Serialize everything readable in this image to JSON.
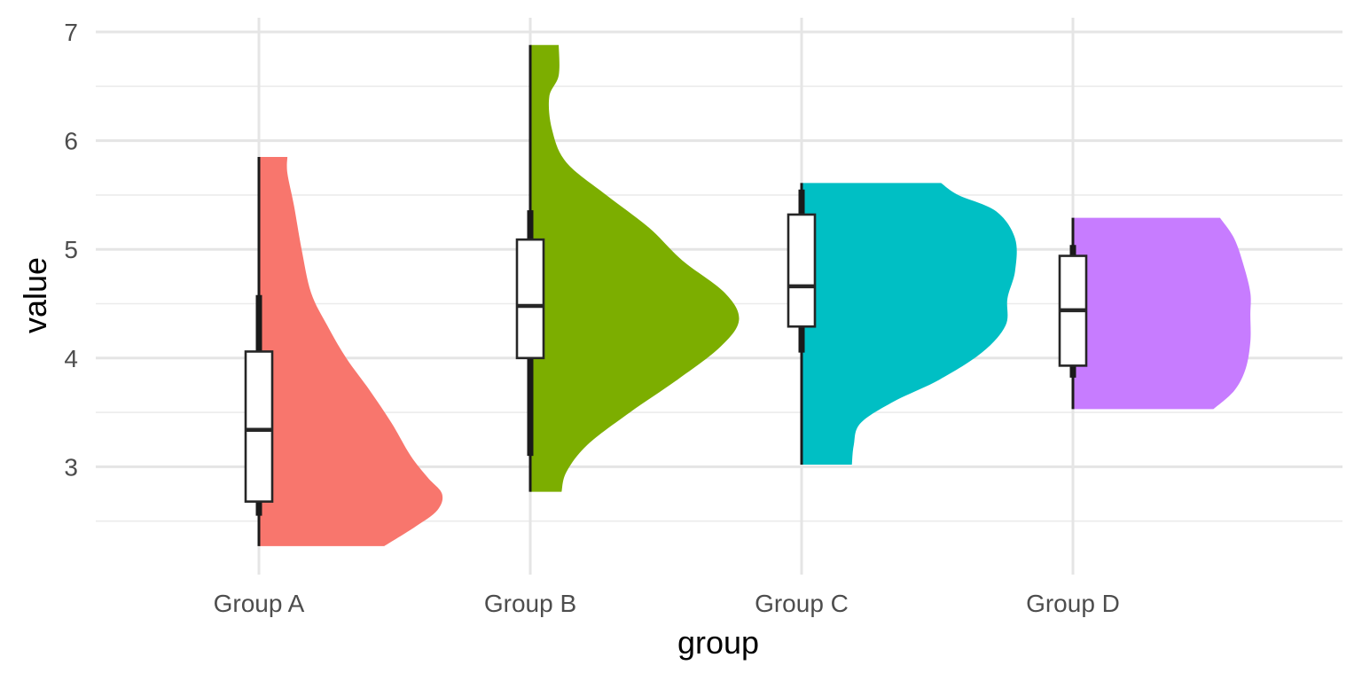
{
  "chart_data": {
    "type": "raincloud",
    "xlabel": "group",
    "ylabel": "value",
    "ylim": [
      2.1,
      7.1
    ],
    "y_ticks": [
      "3",
      "4",
      "5",
      "6",
      "7"
    ],
    "grid": true,
    "categories": [
      "Group A",
      "Group B",
      "Group C",
      "Group D"
    ],
    "colors": [
      "#F8766D",
      "#7CAE00",
      "#00BFC4",
      "#C77CFF"
    ],
    "groups": [
      {
        "name": "Group A",
        "box": {
          "min": 2.27,
          "q1": 2.68,
          "median": 3.34,
          "q3": 4.06,
          "max": 5.85,
          "whisker_low": 2.55,
          "whisker_high": 4.58
        },
        "density": [
          [
            2.27,
            1.32
          ],
          [
            2.45,
            1.65
          ],
          [
            2.6,
            1.88
          ],
          [
            2.75,
            1.93
          ],
          [
            2.9,
            1.78
          ],
          [
            3.1,
            1.6
          ],
          [
            3.4,
            1.4
          ],
          [
            3.7,
            1.17
          ],
          [
            4.0,
            0.92
          ],
          [
            4.3,
            0.72
          ],
          [
            4.6,
            0.55
          ],
          [
            5.0,
            0.45
          ],
          [
            5.4,
            0.37
          ],
          [
            5.7,
            0.3
          ],
          [
            5.85,
            0.3
          ]
        ]
      },
      {
        "name": "Group B",
        "box": {
          "min": 2.77,
          "q1": 4.0,
          "median": 4.48,
          "q3": 5.09,
          "max": 6.88,
          "whisker_low": 3.1,
          "whisker_high": 5.36
        },
        "density": [
          [
            2.77,
            0.33
          ],
          [
            2.95,
            0.38
          ],
          [
            3.2,
            0.6
          ],
          [
            3.5,
            1.05
          ],
          [
            3.8,
            1.55
          ],
          [
            4.1,
            2.0
          ],
          [
            4.35,
            2.2
          ],
          [
            4.6,
            2.05
          ],
          [
            4.9,
            1.6
          ],
          [
            5.2,
            1.25
          ],
          [
            5.5,
            0.8
          ],
          [
            5.8,
            0.38
          ],
          [
            6.1,
            0.23
          ],
          [
            6.4,
            0.2
          ],
          [
            6.6,
            0.3
          ],
          [
            6.88,
            0.3
          ]
        ]
      },
      {
        "name": "Group C",
        "box": {
          "min": 3.02,
          "q1": 4.29,
          "median": 4.66,
          "q3": 5.32,
          "max": 5.61,
          "whisker_low": 4.05,
          "whisker_high": 5.55
        },
        "density": [
          [
            3.02,
            0.53
          ],
          [
            3.2,
            0.55
          ],
          [
            3.4,
            0.62
          ],
          [
            3.6,
            0.97
          ],
          [
            3.8,
            1.45
          ],
          [
            4.05,
            1.9
          ],
          [
            4.3,
            2.15
          ],
          [
            4.55,
            2.17
          ],
          [
            4.8,
            2.25
          ],
          [
            5.1,
            2.25
          ],
          [
            5.35,
            2.05
          ],
          [
            5.5,
            1.65
          ],
          [
            5.61,
            1.47
          ]
        ]
      },
      {
        "name": "Group D",
        "box": {
          "min": 3.53,
          "q1": 3.93,
          "median": 4.44,
          "q3": 4.94,
          "max": 5.29,
          "whisker_low": 3.82,
          "whisker_high": 5.04
        },
        "density": [
          [
            3.53,
            1.48
          ],
          [
            3.7,
            1.7
          ],
          [
            3.9,
            1.82
          ],
          [
            4.15,
            1.87
          ],
          [
            4.4,
            1.87
          ],
          [
            4.6,
            1.87
          ],
          [
            4.85,
            1.8
          ],
          [
            5.1,
            1.7
          ],
          [
            5.29,
            1.55
          ]
        ]
      }
    ]
  }
}
